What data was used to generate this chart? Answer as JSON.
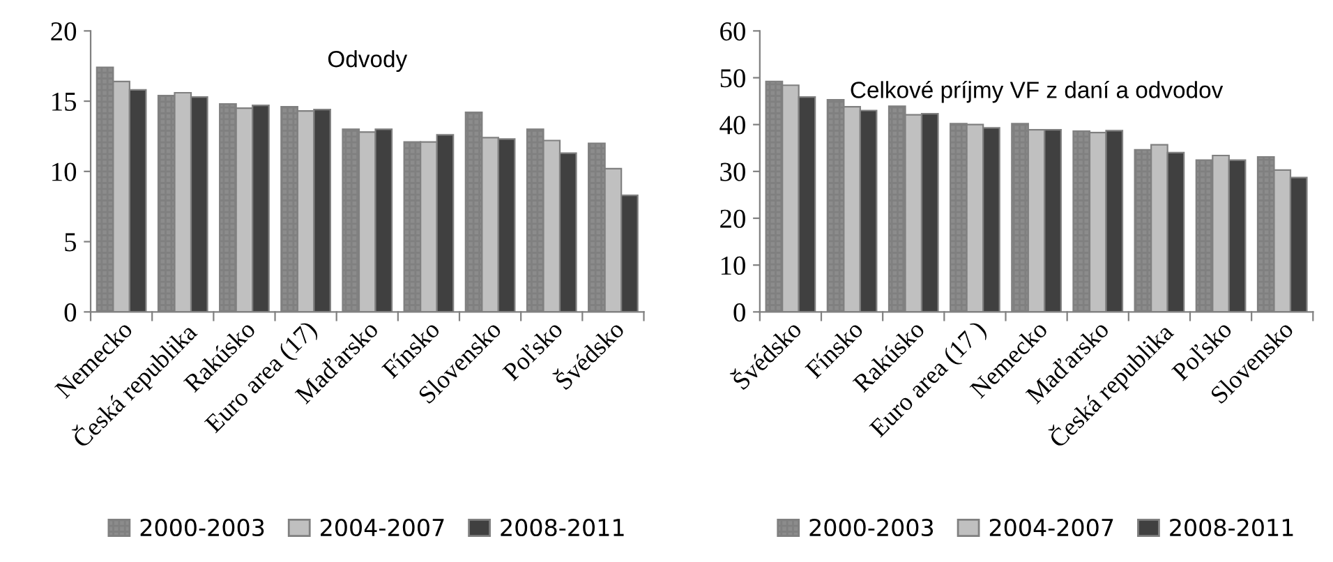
{
  "chart_data": [
    {
      "type": "bar",
      "title": "Odvody",
      "categories": [
        "Nemecko",
        "Česká republika",
        "Rakúsko",
        "Euro area (17)",
        "Maďarsko",
        "Fínsko",
        "Slovensko",
        "Poľsko",
        "Švédsko"
      ],
      "series": [
        {
          "name": "2000-2003",
          "color": "#8c8c8c",
          "values": [
            17.4,
            15.4,
            14.8,
            14.6,
            13.0,
            12.1,
            14.2,
            13.0,
            12.0
          ]
        },
        {
          "name": "2004-2007",
          "color": "#c0c0c0",
          "values": [
            16.4,
            15.6,
            14.5,
            14.3,
            12.8,
            12.1,
            12.4,
            12.2,
            10.2
          ]
        },
        {
          "name": "2008-2011",
          "color": "#404040",
          "values": [
            15.8,
            15.3,
            14.7,
            14.4,
            13.0,
            12.6,
            12.3,
            11.3,
            8.3
          ]
        }
      ],
      "ylim": [
        0,
        20
      ],
      "yticks": [
        0,
        5,
        10,
        15,
        20
      ],
      "grid": false,
      "legend": "bottom"
    },
    {
      "type": "bar",
      "title": "Celkové príjmy VF z daní a odvodov",
      "categories": [
        "Švédsko",
        "Fínsko",
        "Rakúsko",
        "Euro area (17 )",
        "Nemecko",
        "Maďarsko",
        "Česká republika",
        "Poľsko",
        "Slovensko"
      ],
      "series": [
        {
          "name": "2000-2003",
          "color": "#8c8c8c",
          "values": [
            49.2,
            45.3,
            43.9,
            40.2,
            40.2,
            38.6,
            34.6,
            32.4,
            33.1
          ]
        },
        {
          "name": "2004-2007",
          "color": "#c0c0c0",
          "values": [
            48.4,
            43.8,
            42.1,
            40.0,
            38.9,
            38.3,
            35.7,
            33.4,
            30.3
          ]
        },
        {
          "name": "2008-2011",
          "color": "#404040",
          "values": [
            45.9,
            43.0,
            42.3,
            39.3,
            38.9,
            38.7,
            34.0,
            32.4,
            28.7
          ]
        }
      ],
      "ylim": [
        0,
        60
      ],
      "yticks": [
        0,
        10,
        20,
        30,
        40,
        50,
        60
      ],
      "grid": false,
      "legend": "bottom"
    }
  ]
}
